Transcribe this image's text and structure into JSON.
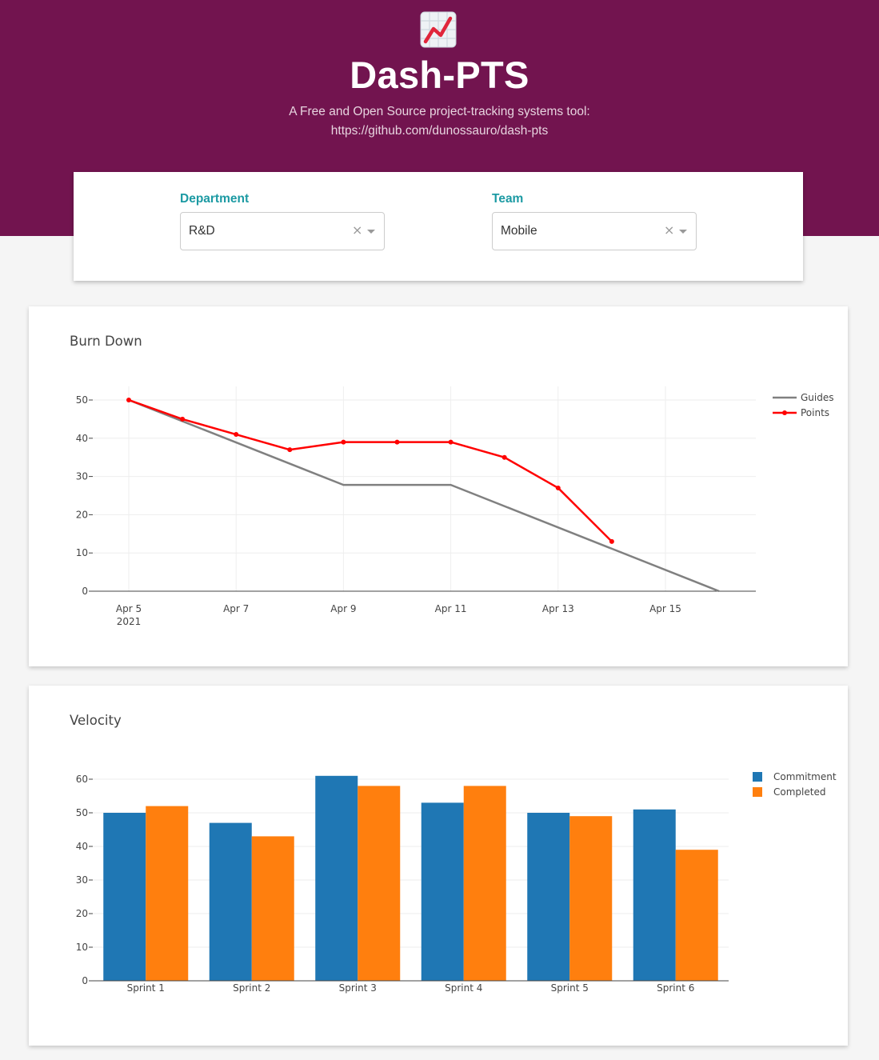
{
  "header": {
    "logo_icon": "chart-increasing-icon",
    "title": "Dash-PTS",
    "subtitle_line1": "A Free and Open Source project-tracking systems tool:",
    "subtitle_line2": "https://github.com/dunossauro/dash-pts",
    "background_color": "#72144f"
  },
  "filters": {
    "department": {
      "label": "Department",
      "value": "R&D",
      "clear_icon": "clear-icon",
      "dropdown_icon": "chevron-down-icon"
    },
    "team": {
      "label": "Team",
      "value": "Mobile",
      "clear_icon": "clear-icon",
      "dropdown_icon": "chevron-down-icon"
    },
    "label_color": "#1c9aa3"
  },
  "chart_data": [
    {
      "type": "line",
      "title": "Burn Down",
      "xlabel": "",
      "ylabel": "",
      "x_ticks": [
        "Apr 5",
        "Apr 7",
        "Apr 9",
        "Apr 11",
        "Apr 13",
        "Apr 15"
      ],
      "x_tick_sublabel": "2021",
      "ylim": [
        0,
        53
      ],
      "y_ticks": [
        0,
        10,
        20,
        30,
        40,
        50
      ],
      "grid": true,
      "legend_position": "top-right",
      "series": [
        {
          "name": "Guides",
          "color": "#808080",
          "markers": false,
          "points": [
            {
              "x": "2021-04-05",
              "y": 50
            },
            {
              "x": "2021-04-09",
              "y": 27.8
            },
            {
              "x": "2021-04-11",
              "y": 27.8
            },
            {
              "x": "2021-04-16",
              "y": 0
            }
          ]
        },
        {
          "name": "Points",
          "color": "#ff0000",
          "markers": true,
          "points": [
            {
              "x": "2021-04-05",
              "y": 50
            },
            {
              "x": "2021-04-06",
              "y": 45
            },
            {
              "x": "2021-04-07",
              "y": 41
            },
            {
              "x": "2021-04-08",
              "y": 37
            },
            {
              "x": "2021-04-09",
              "y": 39
            },
            {
              "x": "2021-04-10",
              "y": 39
            },
            {
              "x": "2021-04-11",
              "y": 39
            },
            {
              "x": "2021-04-12",
              "y": 35
            },
            {
              "x": "2021-04-13",
              "y": 27
            },
            {
              "x": "2021-04-14",
              "y": 13
            }
          ]
        }
      ]
    },
    {
      "type": "bar",
      "title": "Velocity",
      "xlabel": "",
      "ylabel": "",
      "categories": [
        "Sprint 1",
        "Sprint 2",
        "Sprint 3",
        "Sprint 4",
        "Sprint 5",
        "Sprint 6"
      ],
      "ylim": [
        0,
        63
      ],
      "y_ticks": [
        0,
        10,
        20,
        30,
        40,
        50,
        60
      ],
      "grid": true,
      "legend_position": "top-right",
      "series": [
        {
          "name": "Commitment",
          "color": "#1f77b4",
          "values": [
            50,
            47,
            61,
            53,
            50,
            51
          ]
        },
        {
          "name": "Completed",
          "color": "#ff7f0e",
          "values": [
            52,
            43,
            58,
            58,
            49,
            39
          ]
        }
      ]
    }
  ]
}
